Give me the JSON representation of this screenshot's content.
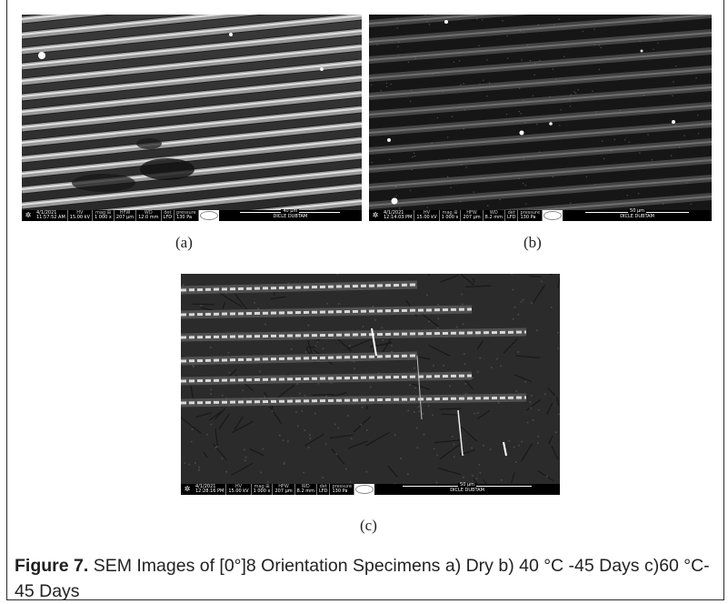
{
  "panels": [
    {
      "id": "a",
      "label": "(a)",
      "databar": {
        "date": "4/1/2021",
        "time": "11:57:52 AM",
        "hv_head": "HV",
        "hv": "15.00 kV",
        "mag_head": "mag ⊞",
        "mag": "1 000 x",
        "hfw_head": "HFW",
        "hfw": "207 μm",
        "wd_head": "WD",
        "wd": "12.0 mm",
        "det_head": "det",
        "det": "LFD",
        "pressure_head": "pressure",
        "pressure": "130 Pa",
        "scale": "40 μm",
        "institution": "DICLE DUBTAM"
      }
    },
    {
      "id": "b",
      "label": "(b)",
      "databar": {
        "date": "4/1/2021",
        "time": "12:14:03 PM",
        "hv_head": "HV",
        "hv": "15.00 kV",
        "mag_head": "mag ⊞",
        "mag": "1 000 x",
        "hfw_head": "HFW",
        "hfw": "207 μm",
        "wd_head": "WD",
        "wd": "8.2 mm",
        "det_head": "det",
        "det": "LFD",
        "pressure_head": "pressure",
        "pressure": "130 Pa",
        "scale": "50 μm",
        "institution": "DICLE DUBTAM"
      }
    },
    {
      "id": "c",
      "label": "(c)",
      "databar": {
        "date": "4/1/2021",
        "time": "12:28:16 PM",
        "hv_head": "HV",
        "hv": "15.00 kV",
        "mag_head": "mag ⊞",
        "mag": "1 000 x",
        "hfw_head": "HFW",
        "hfw": "207 μm",
        "wd_head": "WD",
        "wd": "8.2 mm",
        "det_head": "det",
        "det": "LFD",
        "pressure_head": "pressure",
        "pressure": "130 Pa",
        "scale": "50 μm",
        "institution": "DICLE DUBTAM"
      }
    }
  ],
  "caption": {
    "figure_label": "Figure 7.",
    "text": " SEM Images of [0°]8 Orientation Specimens a) Dry b) 40 °C -45 Days c)60 °C-45 Days"
  }
}
